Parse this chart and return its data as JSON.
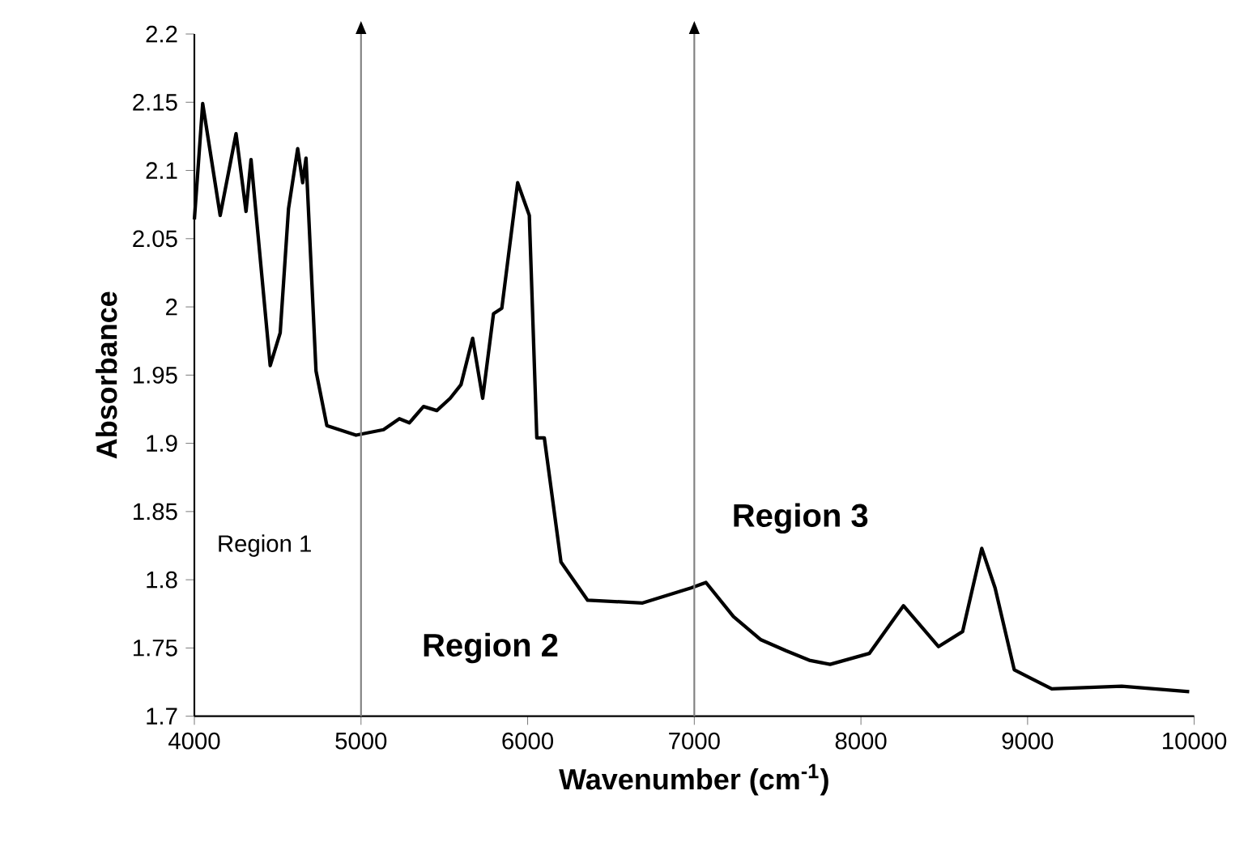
{
  "chart_data": {
    "type": "line",
    "xlabel": "Wavenumber (cm$^{-1}$)",
    "ylabel": "Absorbance",
    "x": [
      4000,
      4050,
      4155,
      4250,
      4310,
      4340,
      4455,
      4515,
      4565,
      4620,
      4650,
      4670,
      4730,
      4795,
      4970,
      5135,
      5230,
      5290,
      5375,
      5455,
      5535,
      5600,
      5670,
      5730,
      5795,
      5845,
      5940,
      6010,
      6055,
      6100,
      6200,
      6360,
      6690,
      6980,
      7070,
      7235,
      7400,
      7550,
      7690,
      7815,
      8050,
      8255,
      8465,
      8610,
      8725,
      8805,
      8920,
      9145,
      9565,
      9970
    ],
    "series": [
      {
        "color": "#000000",
        "values": [
          2.064,
          2.149,
          2.067,
          2.127,
          2.07,
          2.108,
          1.957,
          1.981,
          2.072,
          2.116,
          2.091,
          2.109,
          1.953,
          1.913,
          1.906,
          1.91,
          1.918,
          1.915,
          1.927,
          1.924,
          1.933,
          1.943,
          1.977,
          1.933,
          1.995,
          1.999,
          2.091,
          2.067,
          1.904,
          1.904,
          1.813,
          1.785,
          1.783,
          1.794,
          1.798,
          1.773,
          1.756,
          1.748,
          1.741,
          1.738,
          1.746,
          1.781,
          1.751,
          1.762,
          1.823,
          1.794,
          1.734,
          1.72,
          1.722,
          1.718
        ]
      }
    ],
    "xlim": [
      4000,
      10000
    ],
    "xticks": [
      4000,
      5000,
      6000,
      7000,
      8000,
      9000,
      10000
    ],
    "ylim": [
      1.7,
      2.2
    ],
    "yticks": [
      1.7,
      1.75,
      1.8,
      1.85,
      1.9,
      1.95,
      2,
      2.05,
      2.1,
      2.15,
      2.2
    ],
    "ref_lines": [
      {
        "axis": "x",
        "value": 5000,
        "color": "#808080"
      },
      {
        "axis": "x",
        "value": 7000,
        "color": "#808080"
      }
    ],
    "annotations": [
      "Region 1",
      "Region 2",
      "Region 3"
    ],
    "grid": false,
    "marker": "none",
    "line_style": "solid"
  }
}
